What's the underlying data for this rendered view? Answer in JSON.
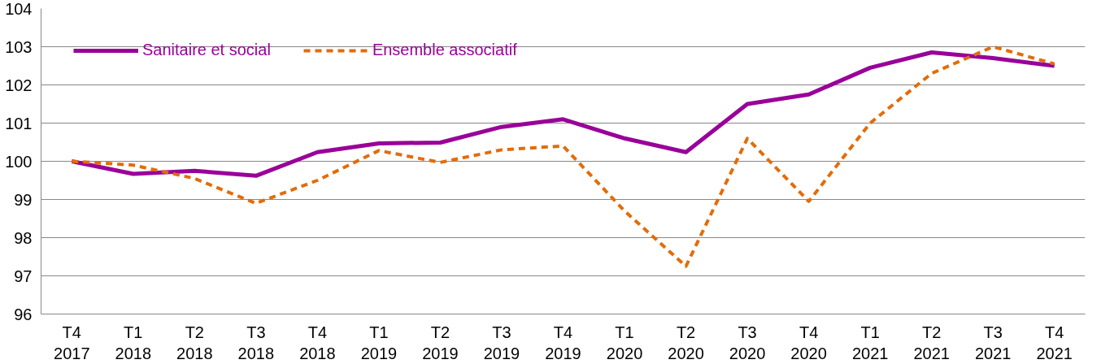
{
  "chart_data": {
    "type": "line",
    "categories": [
      "T4\n2017",
      "T1\n2018",
      "T2\n2018",
      "T3\n2018",
      "T4\n2018",
      "T1\n2019",
      "T2\n2019",
      "T3\n2019",
      "T4\n2019",
      "T1\n2020",
      "T2\n2020",
      "T3\n2020",
      "T4\n2020",
      "T1\n2021",
      "T2\n2021",
      "T3\n2021",
      "T4\n2021"
    ],
    "series": [
      {
        "name": "Sanitaire et social",
        "color": "#990099",
        "line_style": "solid",
        "values": [
          100.0,
          99.67,
          99.75,
          99.62,
          100.24,
          100.47,
          100.49,
          100.9,
          101.1,
          100.6,
          100.24,
          101.5,
          101.75,
          102.45,
          102.85,
          102.7,
          102.5
        ]
      },
      {
        "name": "Ensemble associatif",
        "color": "#e36c0a",
        "line_style": "dashed",
        "values": [
          100.0,
          99.9,
          99.55,
          98.9,
          99.5,
          100.28,
          99.97,
          100.3,
          100.4,
          98.7,
          97.25,
          100.6,
          98.95,
          101.0,
          102.3,
          103.0,
          102.55
        ]
      }
    ],
    "ylim": [
      96,
      104
    ],
    "yticks": [
      96,
      97,
      98,
      99,
      100,
      101,
      102,
      103,
      104
    ],
    "grid": "y",
    "legend": "top left",
    "marker": "none"
  }
}
